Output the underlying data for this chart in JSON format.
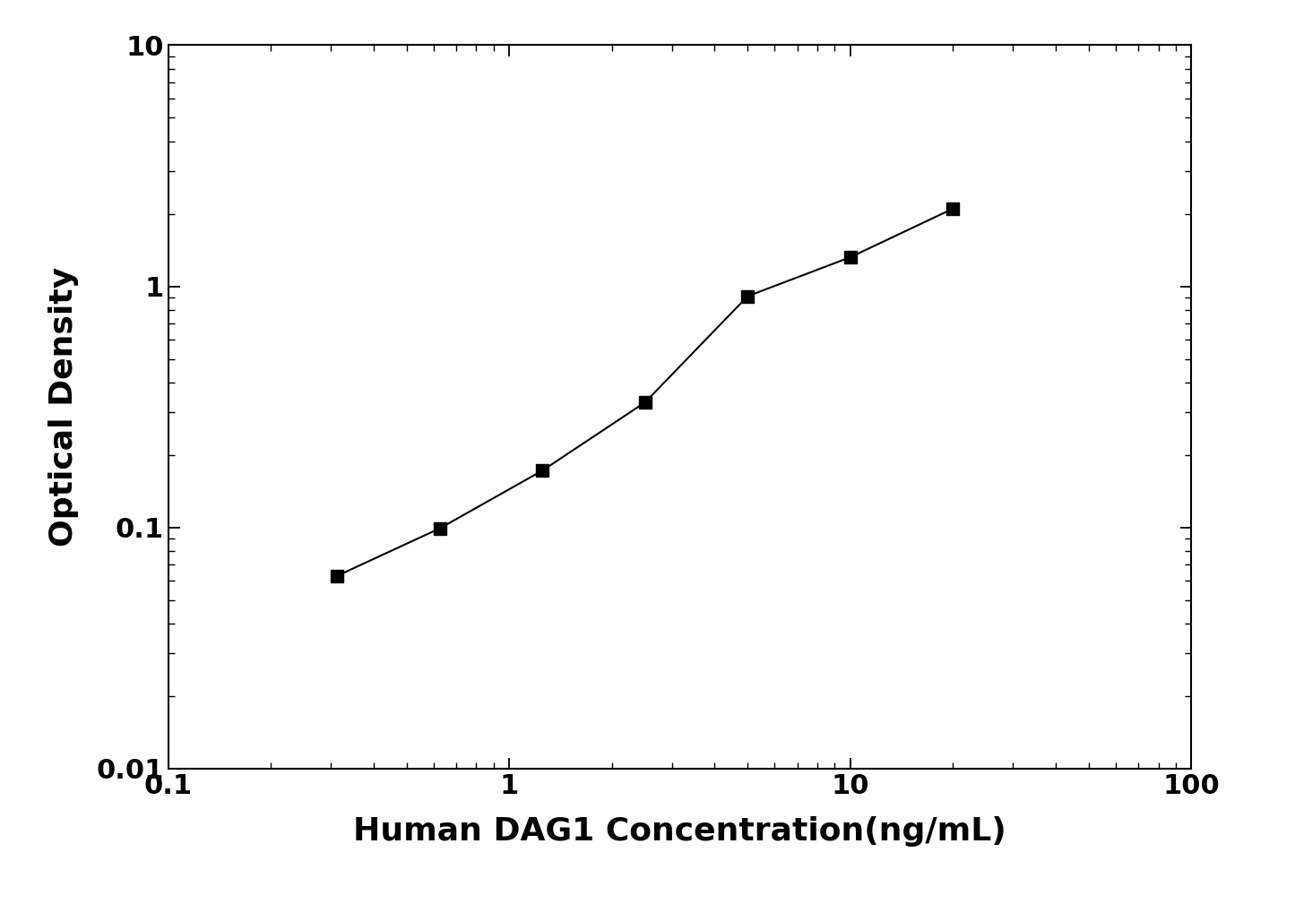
{
  "x": [
    0.313,
    0.625,
    1.25,
    2.5,
    5.0,
    10.0,
    20.0
  ],
  "y": [
    0.063,
    0.099,
    0.172,
    0.33,
    0.91,
    1.32,
    2.1
  ],
  "xlabel": "Human DAG1 Concentration(ng/mL)",
  "ylabel": "Optical Density",
  "xlim_log": [
    0.1,
    100
  ],
  "ylim_log": [
    0.01,
    10
  ],
  "line_color": "#000000",
  "marker": "s",
  "marker_color": "#000000",
  "marker_size": 10,
  "line_width": 1.5,
  "xlabel_fontsize": 26,
  "ylabel_fontsize": 26,
  "tick_fontsize": 22,
  "background_color": "#ffffff"
}
